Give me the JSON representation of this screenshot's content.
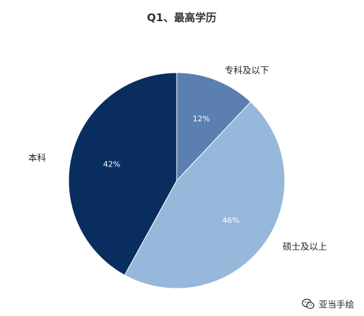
{
  "chart_data": {
    "type": "pie",
    "title": "Q1、最高学历",
    "categories": [
      "专科及以下",
      "硕士及以上",
      "本科"
    ],
    "values": [
      12,
      46,
      42
    ],
    "value_labels": [
      "12%",
      "46%",
      "42%"
    ],
    "colors": [
      "#5a7fb0",
      "#96b8da",
      "#0a2d5f"
    ],
    "start_angle_deg": 0,
    "direction": "clockwise"
  },
  "watermark": {
    "text": "亚当手绘",
    "icon": "wechat-icon"
  }
}
